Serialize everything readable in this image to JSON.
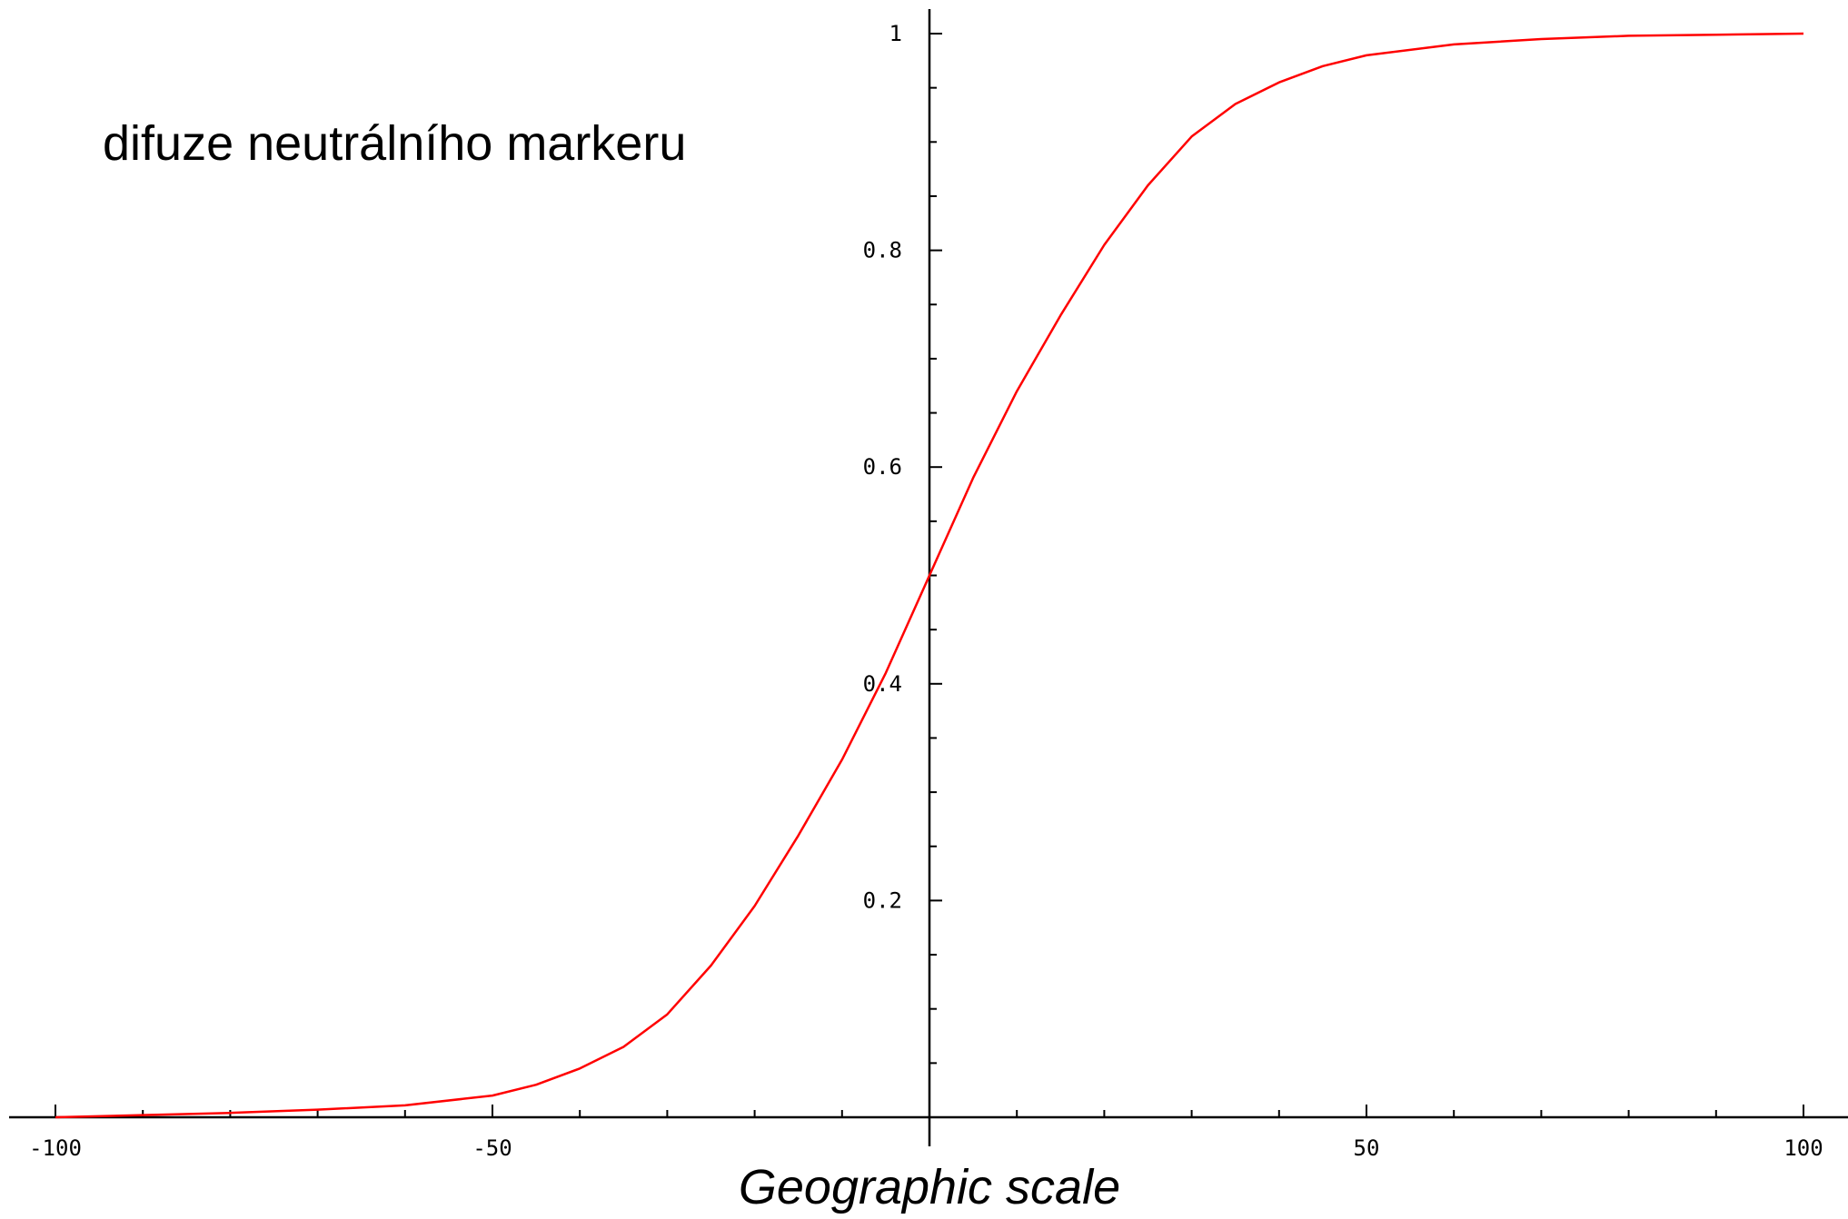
{
  "chart_data": {
    "type": "line",
    "title": "",
    "annotation": "difuze neutrálního markeru",
    "xlabel": "Geographic scale",
    "ylabel": "",
    "xlim": [
      -105,
      105
    ],
    "ylim": [
      0,
      1.02
    ],
    "x_ticks_labeled": [
      -100,
      -50,
      50,
      100
    ],
    "x_tick_labels": [
      "-100",
      "-50",
      "50",
      "100"
    ],
    "x_tick_step": 10,
    "y_ticks_labeled": [
      0.2,
      0.4,
      0.6,
      0.8,
      1
    ],
    "y_tick_labels": [
      "0.2",
      "0.4",
      "0.6",
      "0.8",
      "1"
    ],
    "y_tick_step": 0.05,
    "grid": false,
    "legend": "none",
    "series": [
      {
        "color": "#ff0000",
        "x": [
          -100,
          -90,
          -80,
          -70,
          -60,
          -50,
          -45,
          -40,
          -35,
          -30,
          -25,
          -20,
          -15,
          -10,
          -5,
          0,
          5,
          10,
          15,
          20,
          25,
          30,
          35,
          40,
          45,
          50,
          60,
          70,
          80,
          90,
          100
        ],
        "y": [
          0.0,
          0.002,
          0.004,
          0.007,
          0.011,
          0.02,
          0.03,
          0.045,
          0.065,
          0.095,
          0.14,
          0.195,
          0.26,
          0.33,
          0.41,
          0.5,
          0.59,
          0.67,
          0.74,
          0.805,
          0.86,
          0.905,
          0.935,
          0.955,
          0.97,
          0.98,
          0.99,
          0.995,
          0.998,
          0.999,
          1.0
        ]
      }
    ]
  }
}
